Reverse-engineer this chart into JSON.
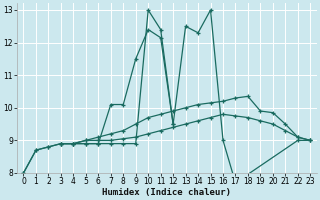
{
  "xlabel": "Humidex (Indice chaleur)",
  "xlim": [
    -0.5,
    23.5
  ],
  "ylim": [
    8,
    13.2
  ],
  "yticks": [
    8,
    9,
    10,
    11,
    12,
    13
  ],
  "xticks": [
    0,
    1,
    2,
    3,
    4,
    5,
    6,
    7,
    8,
    9,
    10,
    11,
    12,
    13,
    14,
    15,
    16,
    17,
    18,
    19,
    20,
    21,
    22,
    23
  ],
  "bg_color": "#cce8ee",
  "grid_color": "#ffffff",
  "line_color": "#1a6b60",
  "lines": [
    {
      "x": [
        0,
        1,
        2,
        3,
        4,
        5,
        6,
        7,
        8,
        9,
        10,
        11,
        12,
        13,
        14,
        15,
        16,
        17,
        22,
        23
      ],
      "y": [
        8.0,
        8.7,
        8.8,
        8.9,
        8.9,
        8.9,
        8.9,
        8.9,
        8.9,
        8.9,
        13.0,
        12.4,
        9.5,
        12.5,
        12.3,
        13.0,
        9.0,
        7.7,
        9.0,
        9.0
      ]
    },
    {
      "x": [
        0,
        1,
        2,
        3,
        4,
        5,
        6,
        7,
        8,
        9,
        10,
        11,
        12
      ],
      "y": [
        8.0,
        8.7,
        8.8,
        8.9,
        8.9,
        8.9,
        8.9,
        10.1,
        10.1,
        11.5,
        12.4,
        12.15,
        9.5
      ]
    },
    {
      "x": [
        3,
        4,
        5,
        6,
        7,
        8,
        9,
        10,
        11,
        12,
        13,
        14,
        15,
        16,
        17,
        18,
        19,
        20,
        21,
        22,
        23
      ],
      "y": [
        8.9,
        8.9,
        9.0,
        9.1,
        9.2,
        9.3,
        9.5,
        9.7,
        9.8,
        9.9,
        10.0,
        10.1,
        10.15,
        10.2,
        10.3,
        10.35,
        9.9,
        9.85,
        9.5,
        9.1,
        9.0
      ]
    },
    {
      "x": [
        3,
        4,
        5,
        6,
        7,
        8,
        9,
        10,
        11,
        12,
        13,
        14,
        15,
        16,
        17,
        18,
        19,
        20,
        21,
        22,
        23
      ],
      "y": [
        8.9,
        8.9,
        9.0,
        9.0,
        9.0,
        9.05,
        9.1,
        9.2,
        9.3,
        9.4,
        9.5,
        9.6,
        9.7,
        9.8,
        9.75,
        9.7,
        9.6,
        9.5,
        9.3,
        9.1,
        9.0
      ]
    }
  ]
}
